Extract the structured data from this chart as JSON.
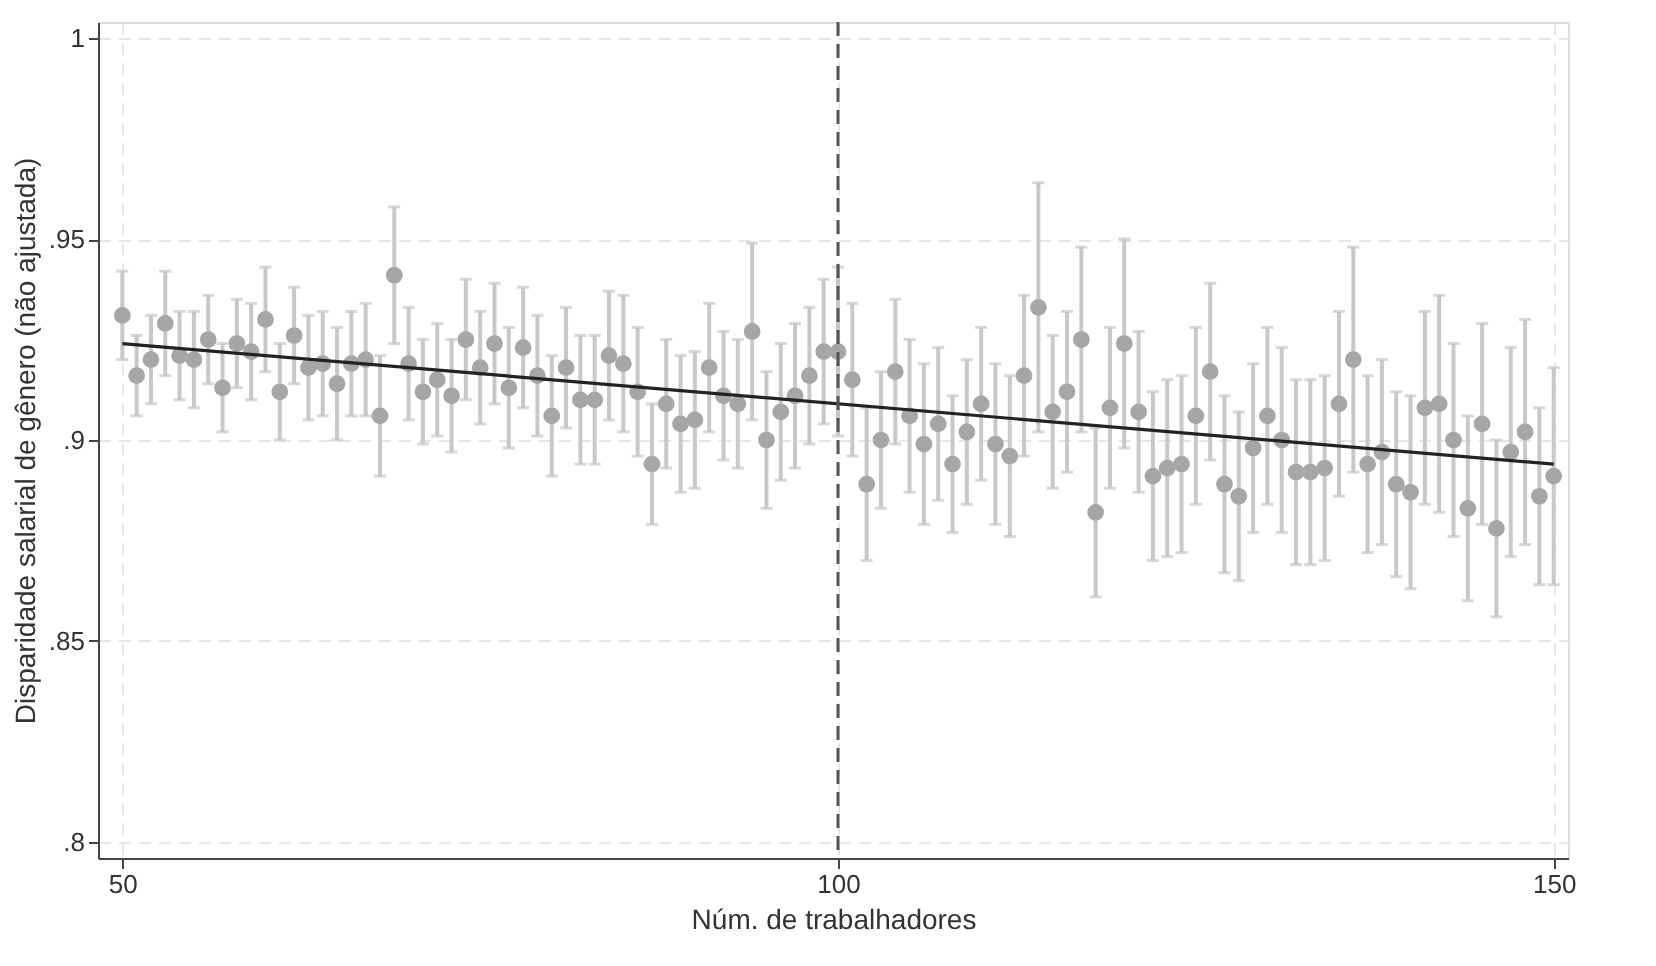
{
  "chart_data": {
    "type": "scatter",
    "xlabel": "Núm. de trabalhadores",
    "ylabel": "Disparidade salarial de gênero (não ajustada)",
    "xlim": [
      48.3,
      151
    ],
    "ylim": [
      0.796,
      1.004
    ],
    "xticks": [
      50,
      100,
      150
    ],
    "yticks": [
      {
        "value": 0.8,
        "label": ".8"
      },
      {
        "value": 0.85,
        "label": ".85"
      },
      {
        "value": 0.9,
        "label": ".9"
      },
      {
        "value": 0.95,
        "label": ".95"
      },
      {
        "value": 1,
        "label": "1"
      }
    ],
    "grid": true,
    "ref_lines": [
      {
        "axis": "x",
        "value": 100,
        "color": "#555555",
        "line_style": "dashed"
      }
    ],
    "series": [
      {
        "marker": "circle",
        "color": "#a6a6a6",
        "x": [
          50,
          51,
          52,
          53,
          54,
          55,
          56,
          57,
          58,
          59,
          60,
          61,
          62,
          63,
          64,
          65,
          66,
          67,
          68,
          69,
          70,
          71,
          72,
          73,
          74,
          75,
          76,
          77,
          78,
          79,
          80,
          81,
          82,
          83,
          84,
          85,
          86,
          87,
          88,
          89,
          90,
          91,
          92,
          93,
          94,
          95,
          96,
          97,
          98,
          99,
          100,
          101,
          102,
          103,
          104,
          105,
          106,
          107,
          108,
          109,
          110,
          111,
          112,
          113,
          114,
          115,
          116,
          117,
          118,
          119,
          120,
          121,
          122,
          123,
          124,
          125,
          126,
          127,
          128,
          129,
          130,
          131,
          132,
          133,
          134,
          135,
          136,
          137,
          138,
          139,
          140,
          141,
          142,
          143,
          144,
          145,
          146,
          147,
          148,
          149,
          150
        ],
        "values": [
          0.931,
          0.916,
          0.92,
          0.929,
          0.921,
          0.92,
          0.925,
          0.913,
          0.924,
          0.922,
          0.93,
          0.912,
          0.926,
          0.918,
          0.919,
          0.914,
          0.919,
          0.92,
          0.906,
          0.941,
          0.919,
          0.912,
          0.915,
          0.911,
          0.925,
          0.918,
          0.924,
          0.913,
          0.923,
          0.916,
          0.906,
          0.918,
          0.91,
          0.91,
          0.921,
          0.919,
          0.912,
          0.894,
          0.909,
          0.904,
          0.905,
          0.918,
          0.911,
          0.909,
          0.927,
          0.9,
          0.907,
          0.911,
          0.916,
          0.922,
          0.922,
          0.915,
          0.889,
          0.9,
          0.917,
          0.906,
          0.899,
          0.904,
          0.894,
          0.902,
          0.909,
          0.899,
          0.896,
          0.916,
          0.933,
          0.907,
          0.912,
          0.925,
          0.882,
          0.908,
          0.924,
          0.907,
          0.891,
          0.893,
          0.894,
          0.906,
          0.917,
          0.889,
          0.886,
          0.898,
          0.906,
          0.9,
          0.892,
          0.892,
          0.893,
          0.909,
          0.92,
          0.894,
          0.897,
          0.889,
          0.887,
          0.908,
          0.909,
          0.9,
          0.883,
          0.904,
          0.878,
          0.897,
          0.902,
          0.886,
          0.891
        ],
        "errors": [
          0.011,
          0.01,
          0.011,
          0.013,
          0.011,
          0.012,
          0.011,
          0.011,
          0.011,
          0.012,
          0.013,
          0.012,
          0.012,
          0.013,
          0.013,
          0.014,
          0.013,
          0.014,
          0.015,
          0.017,
          0.014,
          0.013,
          0.014,
          0.014,
          0.015,
          0.014,
          0.015,
          0.015,
          0.015,
          0.015,
          0.015,
          0.015,
          0.016,
          0.016,
          0.016,
          0.017,
          0.016,
          0.015,
          0.016,
          0.017,
          0.017,
          0.016,
          0.016,
          0.016,
          0.022,
          0.017,
          0.017,
          0.018,
          0.017,
          0.018,
          0.021,
          0.019,
          0.019,
          0.017,
          0.018,
          0.019,
          0.02,
          0.019,
          0.017,
          0.018,
          0.019,
          0.02,
          0.02,
          0.02,
          0.031,
          0.019,
          0.02,
          0.023,
          0.021,
          0.02,
          0.026,
          0.02,
          0.021,
          0.022,
          0.022,
          0.022,
          0.022,
          0.022,
          0.021,
          0.021,
          0.022,
          0.023,
          0.023,
          0.023,
          0.023,
          0.023,
          0.028,
          0.022,
          0.023,
          0.023,
          0.024,
          0.024,
          0.027,
          0.024,
          0.023,
          0.025,
          0.022,
          0.026,
          0.028,
          0.022,
          0.027
        ]
      },
      {
        "type": "line",
        "color": "#222222",
        "x": [
          50,
          150
        ],
        "values": [
          0.924,
          0.894
        ]
      }
    ]
  }
}
